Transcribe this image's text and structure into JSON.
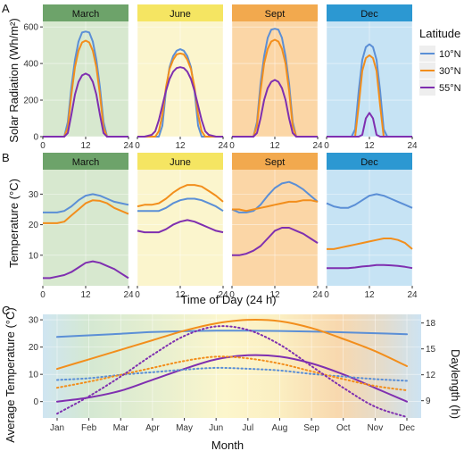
{
  "panel_letters": [
    "A",
    "B",
    "C"
  ],
  "legend": {
    "title": "Latitude",
    "items": [
      {
        "label": "10°N",
        "color": "#5B8FD6"
      },
      {
        "label": "30°N",
        "color": "#F28E1C"
      },
      {
        "label": "55°N",
        "color": "#7F2FB0"
      }
    ]
  },
  "strip_styles": [
    {
      "strip": "#6DA36A",
      "bg": "#D7E8CF"
    },
    {
      "strip": "#F5E562",
      "bg": "#FBF5CD"
    },
    {
      "strip": "#F2A94E",
      "bg": "#FBD6A6"
    },
    {
      "strip": "#2C98D2",
      "bg": "#C6E3F4"
    }
  ],
  "chart_data": [
    {
      "type": "line",
      "panel": "A",
      "facets": [
        "March",
        "June",
        "Sept",
        "Dec"
      ],
      "ylabel": "Solar Radiation (Wh/m²)",
      "xlabel": "",
      "xlim": [
        0,
        24
      ],
      "ylim": [
        0,
        630
      ],
      "x_ticks": [
        0,
        12,
        24
      ],
      "y_ticks": [
        0,
        200,
        400,
        600
      ],
      "x": [
        0,
        2,
        4,
        5,
        6,
        7,
        8,
        9,
        10,
        11,
        12,
        13,
        14,
        15,
        16,
        17,
        18,
        19,
        20,
        22,
        24
      ],
      "panels": [
        {
          "series": [
            {
              "name": "10°N",
              "values": [
                0,
                0,
                0,
                0,
                0,
                80,
                270,
                420,
                520,
                570,
                575,
                570,
                520,
                420,
                270,
                80,
                0,
                0,
                0,
                0,
                0
              ]
            },
            {
              "name": "30°N",
              "values": [
                0,
                0,
                0,
                0,
                0,
                50,
                230,
                380,
                470,
                515,
                525,
                515,
                470,
                380,
                230,
                50,
                0,
                0,
                0,
                0,
                0
              ]
            },
            {
              "name": "55°N",
              "values": [
                0,
                0,
                0,
                0,
                0,
                20,
                120,
                230,
                300,
                335,
                345,
                335,
                300,
                230,
                120,
                20,
                0,
                0,
                0,
                0,
                0
              ]
            }
          ]
        },
        {
          "series": [
            {
              "name": "10°N",
              "values": [
                0,
                0,
                0,
                0,
                0,
                60,
                250,
                380,
                440,
                470,
                478,
                470,
                440,
                380,
                250,
                60,
                0,
                0,
                0,
                0,
                0
              ]
            },
            {
              "name": "30°N",
              "values": [
                0,
                0,
                0,
                0,
                30,
                120,
                270,
                370,
                420,
                450,
                455,
                450,
                420,
                370,
                270,
                120,
                30,
                0,
                0,
                0,
                0
              ]
            },
            {
              "name": "55°N",
              "values": [
                0,
                0,
                10,
                30,
                90,
                170,
                250,
                315,
                355,
                375,
                380,
                375,
                355,
                315,
                250,
                170,
                90,
                30,
                10,
                0,
                0
              ]
            }
          ]
        },
        {
          "series": [
            {
              "name": "10°N",
              "values": [
                0,
                0,
                0,
                0,
                0,
                80,
                290,
                440,
                540,
                585,
                590,
                585,
                540,
                440,
                290,
                80,
                0,
                0,
                0,
                0,
                0
              ]
            },
            {
              "name": "30°N",
              "values": [
                0,
                0,
                0,
                0,
                0,
                60,
                250,
                400,
                480,
                520,
                530,
                520,
                480,
                400,
                250,
                60,
                0,
                0,
                0,
                0,
                0
              ]
            },
            {
              "name": "55°N",
              "values": [
                0,
                0,
                0,
                0,
                0,
                20,
                100,
                200,
                265,
                300,
                310,
                300,
                265,
                200,
                100,
                20,
                0,
                0,
                0,
                0,
                0
              ]
            }
          ]
        },
        {
          "series": [
            {
              "name": "10°N",
              "values": [
                0,
                0,
                0,
                0,
                0,
                0,
                40,
                250,
                420,
                490,
                505,
                490,
                420,
                250,
                40,
                0,
                0,
                0,
                0,
                0,
                0
              ]
            },
            {
              "name": "30°N",
              "values": [
                0,
                0,
                0,
                0,
                0,
                0,
                0,
                170,
                360,
                430,
                445,
                430,
                360,
                170,
                0,
                0,
                0,
                0,
                0,
                0,
                0
              ]
            },
            {
              "name": "55°N",
              "values": [
                0,
                0,
                0,
                0,
                0,
                0,
                0,
                0,
                10,
                100,
                130,
                100,
                10,
                0,
                0,
                0,
                0,
                0,
                0,
                0,
                0
              ]
            }
          ]
        }
      ]
    },
    {
      "type": "line",
      "panel": "B",
      "facets": [
        "March",
        "June",
        "Sept",
        "Dec"
      ],
      "ylabel": "Temperature (°C)",
      "xlabel": "Time of Day (24 h)",
      "xlim": [
        0,
        24
      ],
      "ylim": [
        0,
        38
      ],
      "x_ticks": [
        0,
        12,
        24
      ],
      "y_ticks": [
        10,
        20,
        30
      ],
      "x": [
        0,
        2,
        4,
        6,
        8,
        10,
        12,
        14,
        16,
        18,
        20,
        22,
        24
      ],
      "panels": [
        {
          "series": [
            {
              "name": "10°N",
              "values": [
                24,
                24,
                24,
                24.5,
                26,
                28,
                29.5,
                30,
                29.5,
                28.5,
                27.5,
                27,
                26.5
              ]
            },
            {
              "name": "30°N",
              "values": [
                20.5,
                20.5,
                20.5,
                21,
                23,
                25,
                27,
                28,
                27.8,
                27,
                25.5,
                24.5,
                23.5
              ]
            },
            {
              "name": "55°N",
              "values": [
                2.5,
                2.5,
                3,
                3.5,
                4.5,
                6,
                7.5,
                8,
                7.5,
                6.5,
                5.5,
                4,
                2.5
              ]
            }
          ]
        },
        {
          "series": [
            {
              "name": "10°N",
              "values": [
                24.5,
                24.5,
                24.5,
                24.5,
                25.5,
                27,
                28,
                28.5,
                28.5,
                28,
                27,
                26,
                24.5
              ]
            },
            {
              "name": "30°N",
              "values": [
                26,
                26.5,
                26.5,
                27,
                28.5,
                30.5,
                32,
                33,
                33,
                32.5,
                31,
                29.5,
                27.5
              ]
            },
            {
              "name": "55°N",
              "values": [
                18,
                17.5,
                17.5,
                17.5,
                18.5,
                20,
                21,
                21.5,
                21,
                20,
                19,
                18,
                17.5
              ]
            }
          ]
        },
        {
          "series": [
            {
              "name": "10°N",
              "values": [
                25,
                24,
                24,
                24.5,
                26.5,
                29.5,
                32,
                33.5,
                34,
                33,
                31.5,
                29.5,
                27.5
              ]
            },
            {
              "name": "30°N",
              "values": [
                25,
                25,
                24.5,
                25,
                25.5,
                26,
                26.5,
                27,
                27.5,
                27.5,
                28,
                28,
                27.5
              ]
            },
            {
              "name": "55°N",
              "values": [
                10,
                10,
                10.5,
                11.5,
                13,
                15.5,
                18,
                19,
                19,
                18,
                17,
                15.5,
                14
              ]
            }
          ]
        },
        {
          "series": [
            {
              "name": "10°N",
              "values": [
                27,
                26,
                25.5,
                25.5,
                26.5,
                28,
                29.5,
                30,
                29.5,
                28.5,
                27.5,
                26.5,
                25.5
              ]
            },
            {
              "name": "30°N",
              "values": [
                12,
                12,
                12.5,
                13,
                13.5,
                14,
                14.5,
                15,
                15.5,
                15.5,
                15,
                14,
                12
              ]
            },
            {
              "name": "55°N",
              "values": [
                5.8,
                5.8,
                5.8,
                5.8,
                6,
                6.3,
                6.5,
                6.8,
                6.8,
                6.7,
                6.5,
                6.2,
                5.8
              ]
            }
          ]
        }
      ]
    },
    {
      "type": "line",
      "panel": "C",
      "xlabel": "Month",
      "ylabel": "Average Temperature (°C)",
      "y2label": "Daylength (h)",
      "categories": [
        "Jan",
        "Feb",
        "Mar",
        "Apr",
        "May",
        "Jun",
        "Jul",
        "Aug",
        "Sep",
        "Oct",
        "Nov",
        "Dec"
      ],
      "ylim": [
        -6,
        32
      ],
      "y_ticks": [
        0,
        10,
        20,
        30
      ],
      "y2lim": [
        7,
        19
      ],
      "y2_ticks": [
        9,
        12,
        15,
        18
      ],
      "series": [
        {
          "name": "10°N",
          "axis": "left",
          "style": "solid",
          "values": [
            23.7,
            24.3,
            24.9,
            25.5,
            25.8,
            26,
            26,
            25.9,
            25.7,
            25.4,
            25.1,
            24.7
          ]
        },
        {
          "name": "30°N",
          "axis": "left",
          "style": "solid",
          "values": [
            12,
            15.5,
            19,
            22.5,
            26,
            28.7,
            30,
            29.5,
            27,
            23,
            18.5,
            13
          ]
        },
        {
          "name": "55°N",
          "axis": "left",
          "style": "solid",
          "values": [
            0,
            1.5,
            4,
            8,
            12,
            15.5,
            17,
            16.5,
            14,
            10,
            5,
            0
          ]
        },
        {
          "name": "10°N",
          "axis": "right",
          "style": "dotted",
          "values": [
            11.4,
            11.6,
            12,
            12.3,
            12.6,
            12.8,
            12.7,
            12.5,
            12.1,
            11.8,
            11.5,
            11.3
          ]
        },
        {
          "name": "30°N",
          "axis": "right",
          "style": "dotted",
          "values": [
            10.5,
            11.2,
            12,
            12.8,
            13.6,
            14.1,
            13.9,
            13.3,
            12.4,
            11.5,
            10.7,
            10.2
          ]
        },
        {
          "name": "55°N",
          "axis": "right",
          "style": "dotted",
          "values": [
            7.5,
            9.5,
            11.8,
            14.3,
            16.5,
            17.6,
            17.2,
            15.5,
            13,
            10.5,
            8.3,
            7.1
          ]
        }
      ]
    }
  ]
}
